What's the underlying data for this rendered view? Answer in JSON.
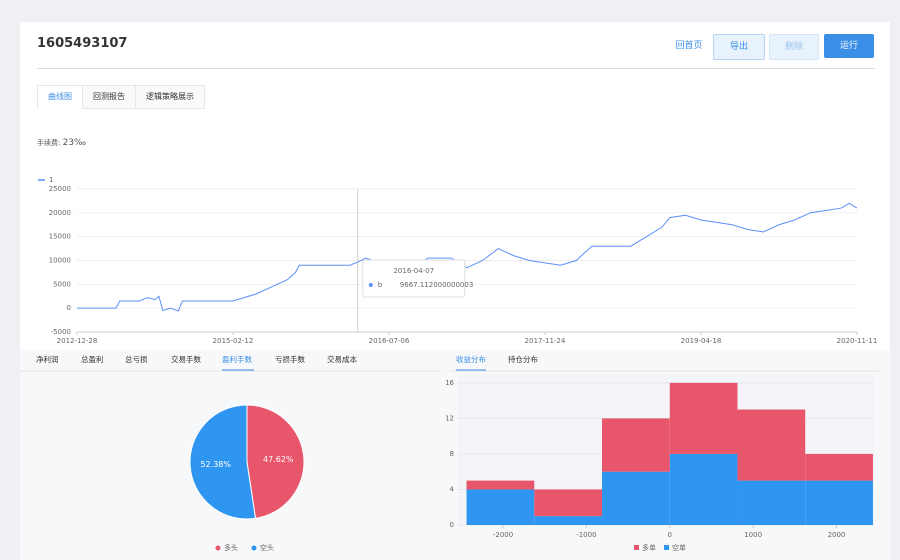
{
  "header": {
    "title": "1605493107",
    "buttons": [
      "回首页",
      "导出",
      "删除",
      "运行"
    ]
  },
  "tabs": [
    "曲线图",
    "回测报告",
    "逻辑策略展示"
  ],
  "fee": {
    "label": "手续费:",
    "value": "23‰"
  },
  "left_tabs": [
    "净利润",
    "总盈利",
    "总亏损",
    "交易手数",
    "盈利手数",
    "亏损手数",
    "交易成本"
  ],
  "right_tabs": [
    "收益分布",
    "持仓分布"
  ],
  "chart_data": [
    {
      "type": "line",
      "x": [
        0,
        5,
        5.5,
        8,
        9,
        10,
        10.5,
        11,
        12,
        13,
        13.5,
        20,
        21,
        23,
        25,
        27,
        28,
        28.5,
        35,
        36,
        37,
        38,
        40,
        42,
        43,
        45,
        48,
        50,
        52,
        54,
        56,
        58,
        60,
        62,
        64,
        66,
        71,
        73,
        75,
        76,
        78,
        80,
        82,
        84,
        86,
        88,
        90,
        92,
        94,
        96,
        98,
        99,
        100
      ],
      "series": [
        {
          "name": "1",
          "color": "#5b8ff9",
          "values": [
            0,
            0,
            1500,
            1500,
            2200,
            1800,
            2500,
            -500,
            0,
            -600,
            1500,
            1500,
            2000,
            3000,
            4500,
            6000,
            7500,
            9000,
            9000,
            9667.112000000003,
            10500,
            10000,
            10000,
            9500,
            8500,
            10500,
            10500,
            8500,
            10000,
            12500,
            11000,
            10000,
            9500,
            9000,
            10000,
            13000,
            13000,
            15000,
            17000,
            19000,
            19500,
            18500,
            18000,
            17500,
            16500,
            16000,
            17500,
            18500,
            20000,
            20500,
            21000,
            22000,
            21000
          ]
        }
      ],
      "xlim": [
        0,
        100
      ],
      "xticks": [
        {
          "value": 0,
          "label": "2012-12-28"
        },
        {
          "value": 20,
          "label": "2015-02-12"
        },
        {
          "value": 40,
          "label": "2016-07-06"
        },
        {
          "value": 60,
          "label": "2017-11-24"
        },
        {
          "value": 80,
          "label": "2019-04-18"
        },
        {
          "value": 100,
          "label": "2020-11-11"
        }
      ],
      "ylim": [
        -5000,
        25000
      ],
      "yticks": [
        -5000,
        0,
        5000,
        10000,
        15000,
        20000,
        25000
      ],
      "grid": true,
      "tooltip": {
        "x": 36,
        "date": "2016-04-07",
        "series": "b",
        "value": 9667.112000000003
      }
    },
    {
      "type": "pie",
      "categories": [
        "多头",
        "空头"
      ],
      "values": [
        47.62,
        52.38
      ],
      "value_labels": [
        "47.62%",
        "52.38%"
      ],
      "colors": [
        "#e8566c",
        "#2e96f0"
      ]
    },
    {
      "type": "histogram",
      "bins": [
        -2437.5,
        -1625,
        -812.5,
        0,
        812.5,
        1625,
        2437.5
      ],
      "series": [
        {
          "name": "多单",
          "color": "#e8566c",
          "values": [
            1,
            3,
            6,
            8,
            8,
            3
          ]
        },
        {
          "name": "空单",
          "color": "#2e96f0",
          "values": [
            4,
            1,
            6,
            8,
            5,
            5
          ]
        }
      ],
      "stacked": true,
      "xlim": [
        -2540,
        2450
      ],
      "xticks": [
        -2000,
        -1000,
        0,
        1000,
        2000
      ],
      "ylim": [
        0,
        17
      ],
      "yticks": [
        0,
        4,
        8,
        12,
        16
      ]
    }
  ]
}
